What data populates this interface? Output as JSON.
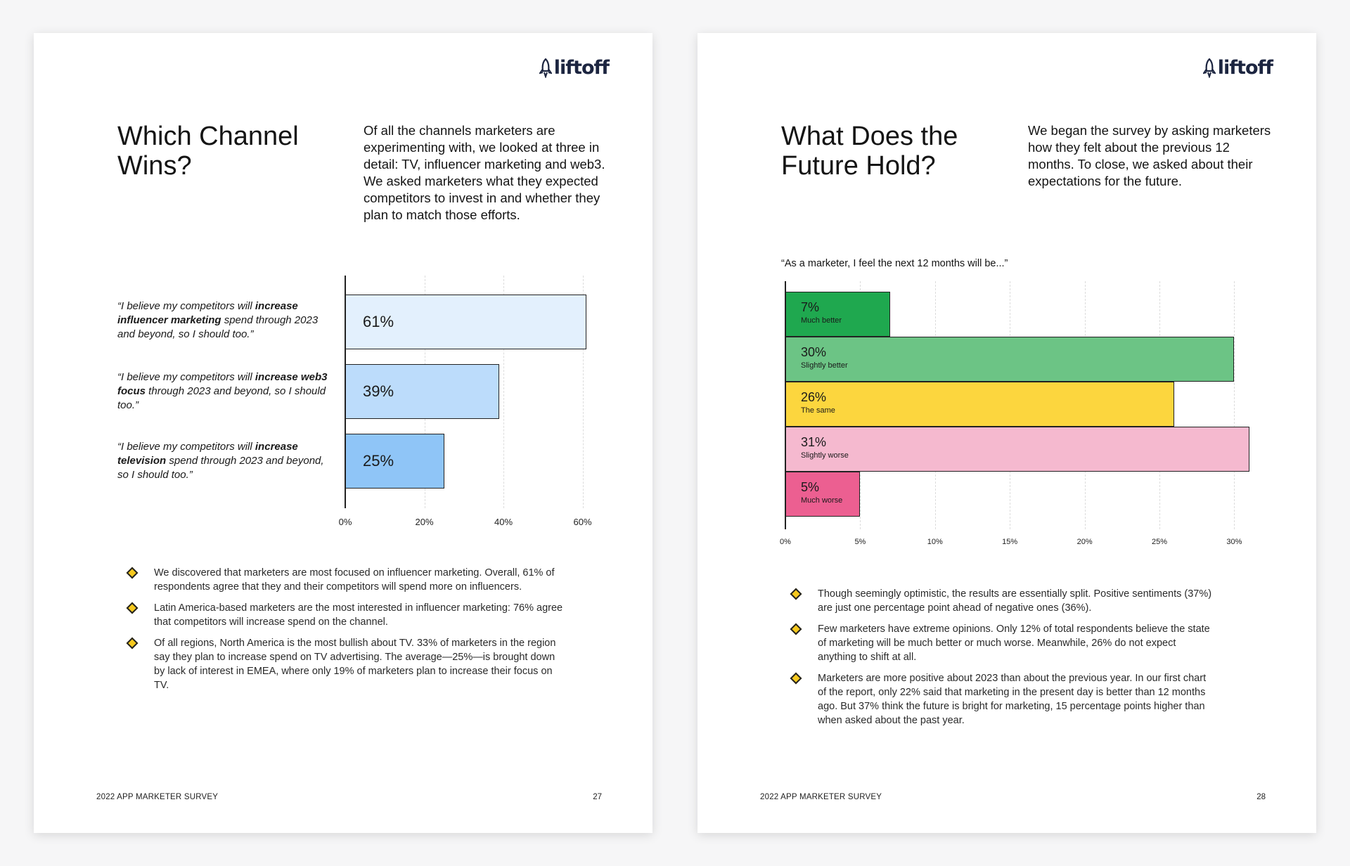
{
  "brand": {
    "logo_text": "liftoff"
  },
  "left_page": {
    "title": "Which Channel Wins?",
    "intro": "Of all the channels marketers are experimenting with, we looked at three in detail: TV, influencer marketing and web3. We asked marketers what they expected competitors to invest in and whether they plan to match those efforts.",
    "quotes": [
      {
        "pre": "“I believe my competitors will ",
        "bold": "increase influencer marketing",
        "post": " spend through 2023 and beyond, so I should too.”"
      },
      {
        "pre": "“I believe my competitors will ",
        "bold": "increase web3 focus",
        "post": " through 2023 and beyond, so I should too.”"
      },
      {
        "pre": "“I believe my competitors will ",
        "bold": "increase television",
        "post": " spend through 2023 and beyond, so I should too.”"
      }
    ],
    "bullets": [
      "We discovered that marketers are most focused on influencer marketing. Overall, 61% of respondents agree that they and their competitors will spend more on influencers.",
      "Latin America-based marketers are the most interested in influencer marketing: 76% agree that competitors will increase spend on the channel.",
      "Of all regions, North America is the most bullish about TV. 33% of marketers in the region say they plan to increase spend on TV advertising. The average—25%—is brought down by lack of interest in EMEA, where only 19% of marketers plan to increase their focus on TV."
    ],
    "footer": {
      "survey": "2022 APP MARKETER SURVEY",
      "page_number": "27"
    }
  },
  "right_page": {
    "title": "What Does the Future Hold?",
    "intro": "We began the survey by asking marketers how they felt about the previous 12 months. To close, we asked about their expectations for the future.",
    "bullets": [
      "Though seemingly optimistic, the results are essentially split. Positive sentiments (37%) are just one percentage point ahead of negative ones (36%).",
      "Few marketers have extreme opinions. Only 12% of total respondents believe the state of marketing will be much better or much worse. Meanwhile, 26% do not expect anything to shift at all.",
      "Marketers are more positive about 2023 than about the previous year. In our first chart of the report, only 22% said that marketing in the present day is better than 12 months ago. But 37% think the future is bright for marketing, 15 percentage points higher than when asked about the past year."
    ],
    "footer": {
      "survey": "2022 APP MARKETER SURVEY",
      "page_number": "28"
    }
  },
  "chart_data": [
    {
      "type": "bar",
      "orientation": "horizontal",
      "categories": [
        "increase influencer marketing",
        "increase web3 focus",
        "increase television"
      ],
      "values": [
        61,
        39,
        25
      ],
      "value_labels": [
        "61%",
        "39%",
        "25%"
      ],
      "xlim": [
        0,
        60
      ],
      "x_ticks": [
        0,
        20,
        40,
        60
      ],
      "x_tick_labels": [
        "0%",
        "20%",
        "40%",
        "60%"
      ],
      "grid": true,
      "colors": [
        "#e3f0fd",
        "#bcdcfb",
        "#8fc5f7"
      ]
    },
    {
      "type": "bar",
      "orientation": "horizontal",
      "title": "“As a marketer, I feel the next 12 months will be...”",
      "categories": [
        "Much better",
        "Slightly better",
        "The same",
        "Slightly worse",
        "Much worse"
      ],
      "values": [
        7,
        30,
        26,
        31,
        5
      ],
      "value_labels": [
        "7%",
        "30%",
        "26%",
        "31%",
        "5%"
      ],
      "xlim": [
        0,
        30
      ],
      "x_ticks": [
        0,
        5,
        10,
        15,
        20,
        25,
        30
      ],
      "x_tick_labels": [
        "0%",
        "5%",
        "10%",
        "15%",
        "20%",
        "25%",
        "30%"
      ],
      "grid": true,
      "colors": [
        "#1fa84f",
        "#6cc485",
        "#fcd63e",
        "#f5b9cf",
        "#ec5f91"
      ]
    }
  ]
}
